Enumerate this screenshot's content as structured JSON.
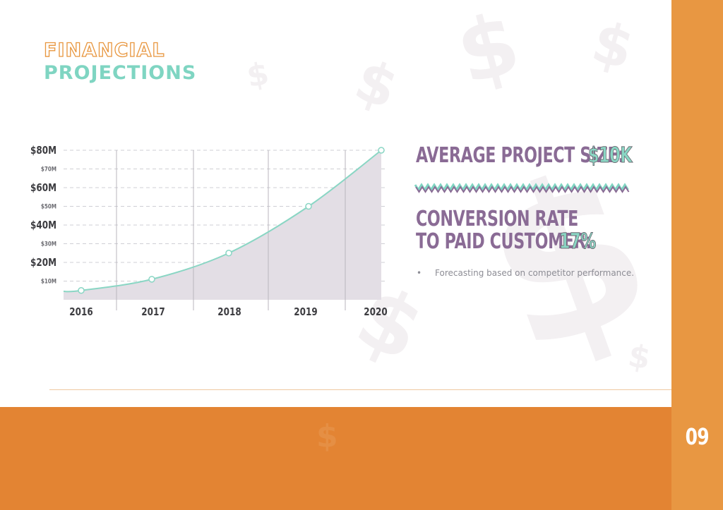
{
  "title": {
    "line1": "FINANCIAL",
    "line2": "PROJECTIONS"
  },
  "colors": {
    "orange": "#e38433",
    "orange_light": "#e89742",
    "teal": "#7fd5c2",
    "purple": "#8a6b95",
    "area_fill": "#e3dee5"
  },
  "stats": {
    "avg_project_label": "AVERAGE PROJECT SIZE:",
    "avg_project_value": "$10K",
    "conversion_label_line1": "CONVERSION RATE",
    "conversion_label_line2": "TO PAID CUSTOMER:",
    "conversion_value": "17%",
    "bullet_text": "Forecasting based on competitor performance."
  },
  "page_number": "09",
  "chart_data": {
    "type": "area",
    "title": "",
    "xlabel": "",
    "ylabel": "",
    "x": [
      "2016",
      "2017",
      "2018",
      "2019",
      "2020"
    ],
    "values": [
      5,
      11,
      25,
      50,
      80
    ],
    "ylim": [
      0,
      80
    ],
    "yticks": [
      {
        "value": 80,
        "label": "$80M",
        "major": true
      },
      {
        "value": 70,
        "label": "$70M",
        "major": false
      },
      {
        "value": 60,
        "label": "$60M",
        "major": true
      },
      {
        "value": 50,
        "label": "$50M",
        "major": false
      },
      {
        "value": 40,
        "label": "$40M",
        "major": true
      },
      {
        "value": 30,
        "label": "$30M",
        "major": false
      },
      {
        "value": 20,
        "label": "$20M",
        "major": true
      },
      {
        "value": 10,
        "label": "$10M",
        "major": false
      }
    ],
    "grid": true,
    "legend": "none",
    "line_color": "#8ad6c4",
    "fill_color": "#e3dee5"
  }
}
